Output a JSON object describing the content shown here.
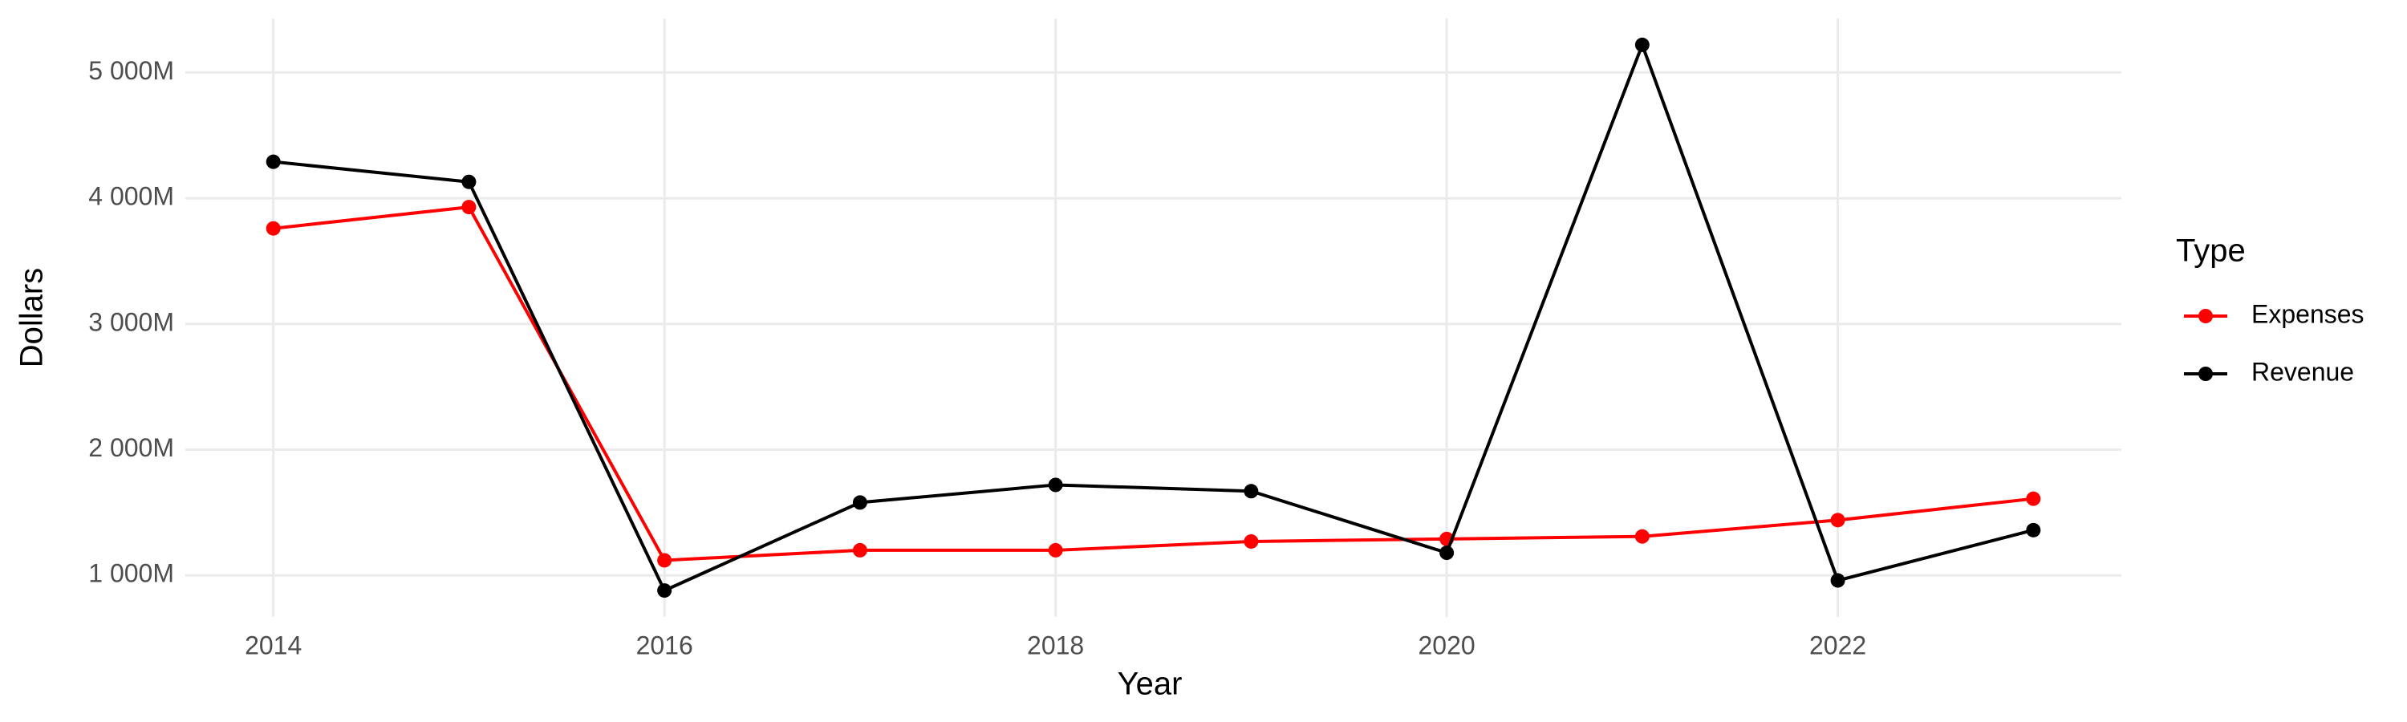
{
  "chart_data": {
    "type": "line",
    "x_label": "Year",
    "y_label": "Dollars",
    "legend_title": "Type",
    "x": [
      2014,
      2015,
      2016,
      2017,
      2018,
      2019,
      2020,
      2021,
      2022,
      2023
    ],
    "series": [
      {
        "name": "Expenses",
        "color": "#ff0000",
        "values": [
          3760000000,
          3930000000,
          1120000000,
          1200000000,
          1200000000,
          1270000000,
          1290000000,
          1310000000,
          1440000000,
          1610000000
        ]
      },
      {
        "name": "Revenue",
        "color": "#000000",
        "values": [
          4290000000,
          4130000000,
          880000000,
          1580000000,
          1720000000,
          1670000000,
          1180000000,
          5220000000,
          960000000,
          1360000000
        ]
      }
    ],
    "xlim": [
      2013.55,
      2023.45
    ],
    "xticks": [
      2014,
      2016,
      2018,
      2020,
      2022
    ],
    "ylim": [
      670000000,
      5430000000
    ],
    "yticks": [
      {
        "value": 1000000000,
        "label": "1 000M"
      },
      {
        "value": 2000000000,
        "label": "2 000M"
      },
      {
        "value": 3000000000,
        "label": "3 000M"
      },
      {
        "value": 4000000000,
        "label": "4 000M"
      },
      {
        "value": 5000000000,
        "label": "5 000M"
      }
    ],
    "grid": true,
    "legend_position": "right"
  }
}
